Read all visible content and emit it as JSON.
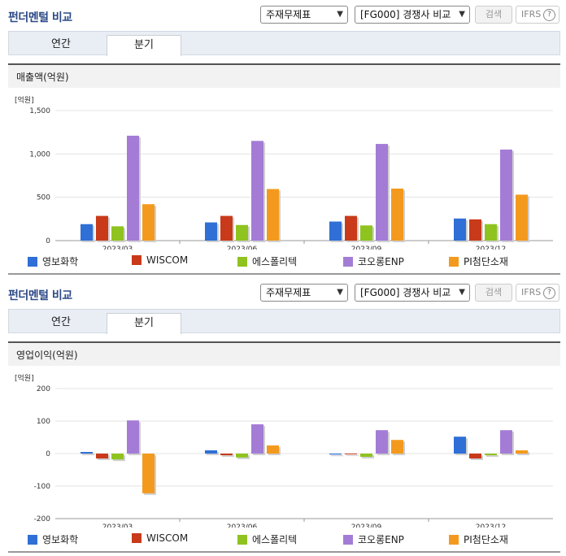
{
  "panels": [
    {
      "title": "펀더멘털 비교",
      "report_select": "주재무제표",
      "compare_select": "[FG000] 경쟁사 비교",
      "search_label": "검색",
      "ifrs_label": "IFRS",
      "ifrs_help": "?",
      "tabs": [
        {
          "label": "연간"
        },
        {
          "label": "분기"
        }
      ],
      "active_tab": 1,
      "section_title": "매출액(억원)"
    },
    {
      "title": "펀더멘털 비교",
      "report_select": "주재무제표",
      "compare_select": "[FG000] 경쟁사 비교",
      "search_label": "검색",
      "ifrs_label": "IFRS",
      "ifrs_help": "?",
      "tabs": [
        {
          "label": "연간"
        },
        {
          "label": "분기"
        }
      ],
      "active_tab": 1,
      "section_title": "영업이익(억원)"
    }
  ],
  "colors": {
    "series": [
      "#2f6fd6",
      "#c83a1a",
      "#8fc31f",
      "#a47cd6",
      "#f39a1e"
    ]
  },
  "chart_data": [
    {
      "type": "bar",
      "unit_label": "[억원]",
      "categories": [
        "2023/03",
        "2023/06",
        "2023/09",
        "2023/12"
      ],
      "yticks": [
        "1,500",
        "1,000",
        "500",
        "0"
      ],
      "ylim": [
        0,
        1500
      ],
      "grid": true,
      "legend_position": "bottom",
      "series": [
        {
          "name": "영보화학",
          "values": [
            190,
            210,
            220,
            255
          ]
        },
        {
          "name": "WISCOM",
          "values": [
            285,
            285,
            285,
            245
          ]
        },
        {
          "name": "에스폴리텍",
          "values": [
            165,
            180,
            175,
            190
          ]
        },
        {
          "name": "코오롱ENP",
          "values": [
            1210,
            1150,
            1115,
            1050
          ]
        },
        {
          "name": "PI첨단소재",
          "values": [
            420,
            595,
            600,
            530
          ]
        }
      ]
    },
    {
      "type": "bar",
      "unit_label": "[억원]",
      "categories": [
        "2023/03",
        "2023/06",
        "2023/09",
        "2023/12"
      ],
      "yticks": [
        "200",
        "100",
        "0",
        "-100",
        "-200"
      ],
      "ylim": [
        -200,
        200
      ],
      "grid": true,
      "legend_position": "bottom",
      "series": [
        {
          "name": "영보화학",
          "values": [
            5,
            10,
            -3,
            52
          ]
        },
        {
          "name": "WISCOM",
          "values": [
            -15,
            -5,
            0,
            -15
          ]
        },
        {
          "name": "에스폴리텍",
          "values": [
            -18,
            -12,
            -10,
            -5
          ]
        },
        {
          "name": "코오롱ENP",
          "values": [
            102,
            90,
            72,
            72
          ]
        },
        {
          "name": "PI첨단소재",
          "values": [
            -122,
            25,
            42,
            10
          ]
        }
      ]
    }
  ]
}
